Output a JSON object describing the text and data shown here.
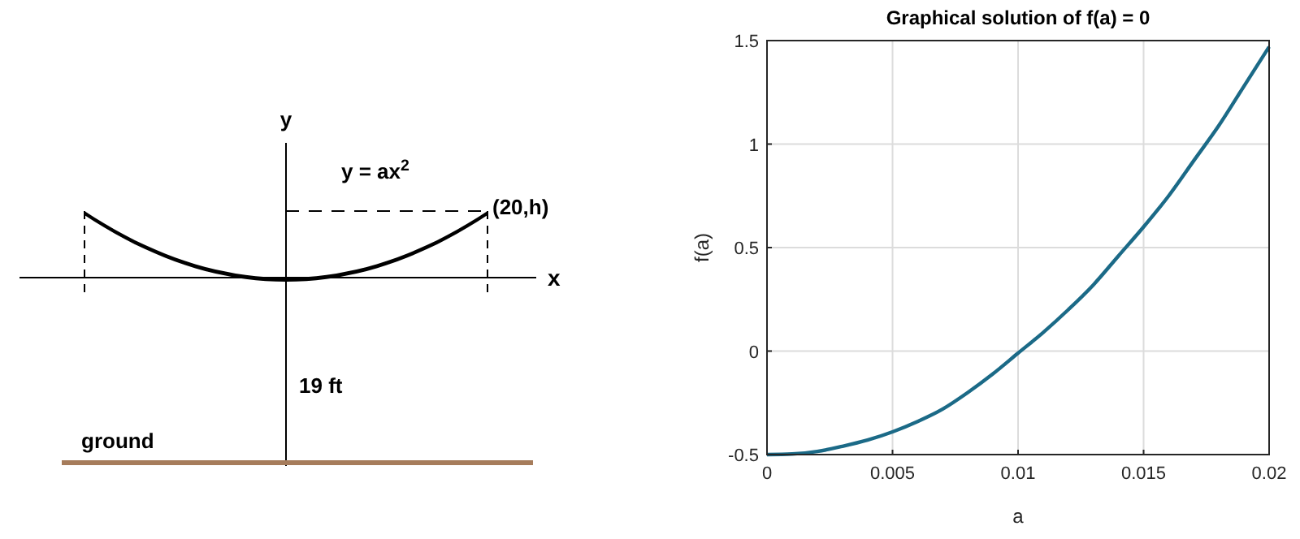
{
  "chart_data": [
    {
      "type": "other",
      "annotations": [
        "y",
        "y = ax$^{2}$",
        "(20,h)",
        "x",
        "19 ft",
        "ground"
      ]
    },
    {
      "type": "line",
      "title": "Graphical solution of f(a) = 0",
      "xlabel": "a",
      "ylabel": "f(a)",
      "xlim": [
        0,
        0.02
      ],
      "ylim": [
        -0.5,
        1.5
      ],
      "xticks": [
        0,
        0.005,
        0.01,
        0.015,
        0.02
      ],
      "yticks": [
        -0.5,
        0,
        0.5,
        1,
        1.5
      ],
      "grid": true,
      "x": [
        0,
        0.001,
        0.002,
        0.003,
        0.004,
        0.005,
        0.006,
        0.007,
        0.008,
        0.009,
        0.01,
        0.011,
        0.012,
        0.013,
        0.014,
        0.015,
        0.016,
        0.017,
        0.018,
        0.019,
        0.02
      ],
      "series": [
        {
          "color": "#1b6a87",
          "values": [
            -0.5,
            -0.497,
            -0.485,
            -0.46,
            -0.43,
            -0.39,
            -0.34,
            -0.28,
            -0.2,
            -0.11,
            -0.01,
            0.09,
            0.2,
            0.32,
            0.46,
            0.6,
            0.75,
            0.92,
            1.09,
            1.28,
            1.47
          ]
        }
      ]
    }
  ]
}
